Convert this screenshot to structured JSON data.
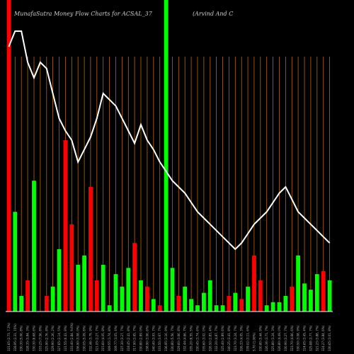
{
  "chart_data": {
    "type": "bar",
    "title": "MunafaSutra  Money Flow  Charts for ACSAL_37",
    "subtitle": "(Arvind And C",
    "bar_color_up": "#00ff00",
    "bar_color_down": "#ff0000",
    "line_color": "#ffffff",
    "grid_color": "#b36b00",
    "ylim": [
      0,
      100
    ],
    "categories": [
      "331.65 (2.73, 7.3%)",
      "328.95 (2.31, 15%)",
      "330.30 (5.06, 8%)",
      "328.35 (3.84, 3%)",
      "330.30 (6.68, 6%)",
      "333.25 (7.56, 8%)",
      "325.90 (2.76, 8%)",
      "329.90 (2.26, 2%)",
      "327.65 (2.14, 5%)",
      "331.55 (6.43, 8%)",
      "333.40 (2.84, 9.6%)",
      "336.90 (3.08, 0%)",
      "330.05 (5.09, 8%)",
      "332.46 (3.79, 9%)",
      "321.05 (2.27, 7%)",
      "315.60 (4.05, 8%)",
      "309.55 (1.74, 8%)",
      "309.77 (3.05, 4%)",
      "337.30 (3.27, 7%)",
      "318.45 (2.41, 8%)",
      "317.90 (3.65, 7%)",
      "330.80 (2.89, 0%)",
      "338.90 (3.06, 6%)",
      "340.40 (3.93, 7%)",
      "333.50 (3.67, 7%)",
      "336.95 (3.16, 9%)",
      "330.80 (5.56, 7%)",
      "329.60 (3.66, 8%)",
      "332.44 (4.66, 7%)",
      "335.20 (6.55, 5%)",
      "330.45 (3.74, 6%)",
      "335.60 (3.02, 0%)",
      "326.50 (2.83, 4%)",
      "332.20 (4.87, 7%)",
      "325.40 (2.89, 6%)",
      "340.25 (3.41, 8%)",
      "323.70 (3.24, 7%)",
      "326.33 (4.05, 3%)",
      "339.02 (3.11, 6%)",
      "5.70 (1.06%)",
      "330.80 (5.44, 9%)",
      "326.36 (3.71, 7%)",
      "325.80 (3.24, 3%)",
      "326.80 (4.49, 0%)",
      "330.90 (3.27, 7%)",
      "323.70 (4.66, 6%)",
      "330.50 (3.08, 9%)",
      "324.65 (3.45, 4%)",
      "325.88 (3.77, 7%)",
      "321.23 (3.88, 7%)",
      "324.27 (3.84, 6%)",
      "330.65 (3.01, 8%)"
    ],
    "series": [
      {
        "values": [
          100,
          32,
          5,
          10,
          42,
          0,
          5,
          8,
          20,
          55,
          28,
          15,
          18,
          40,
          10,
          15,
          2,
          12,
          8,
          14,
          22,
          10,
          8,
          4,
          2,
          100,
          14,
          5,
          8,
          4,
          2,
          6,
          10,
          2,
          2,
          5,
          6,
          4,
          8,
          18,
          10,
          2,
          3,
          3,
          5,
          8,
          18,
          9,
          7,
          12,
          13,
          10
        ],
        "colors": [
          "red",
          "green",
          "green",
          "red",
          "green",
          "red",
          "red",
          "green",
          "green",
          "red",
          "red",
          "green",
          "green",
          "red",
          "red",
          "green",
          "green",
          "green",
          "green",
          "green",
          "red",
          "green",
          "red",
          "green",
          "red",
          "green",
          "green",
          "red",
          "green",
          "green",
          "green",
          "green",
          "green",
          "green",
          "green",
          "red",
          "green",
          "red",
          "green",
          "red",
          "red",
          "green",
          "green",
          "green",
          "green",
          "red",
          "green",
          "green",
          "green",
          "green",
          "red",
          "green"
        ]
      }
    ],
    "line_values": [
      85,
      90,
      90,
      80,
      75,
      80,
      78,
      70,
      62,
      58,
      55,
      48,
      52,
      56,
      62,
      70,
      68,
      66,
      62,
      58,
      54,
      60,
      55,
      52,
      48,
      45,
      42,
      40,
      38,
      35,
      32,
      30,
      28,
      26,
      24,
      22,
      20,
      22,
      25,
      28,
      30,
      32,
      35,
      38,
      40,
      36,
      32,
      30,
      28,
      26,
      24,
      22
    ]
  }
}
